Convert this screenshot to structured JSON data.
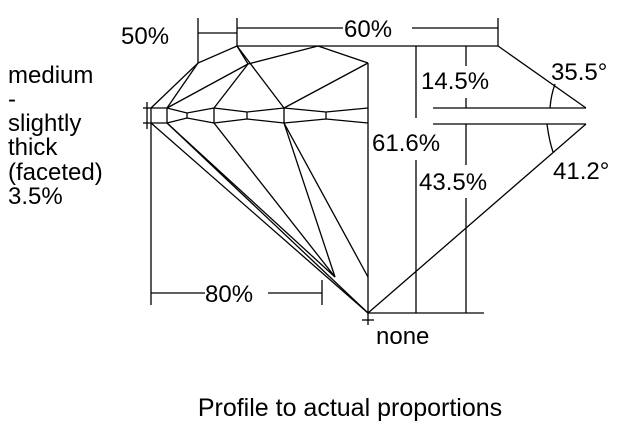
{
  "dimensions": {
    "table_upper": "50%",
    "table": "60%",
    "crown_height": "14.5%",
    "total_depth": "61.6%",
    "pavilion_depth": "43.5%",
    "crown_angle": "35.5°",
    "pavilion_angle": "41.2°",
    "lower_half": "80%",
    "culet": "none"
  },
  "girdle": {
    "lines": [
      "medium",
      "-",
      "slightly",
      "thick",
      "(faceted)",
      "3.5%"
    ]
  },
  "caption": "Profile to actual proportions",
  "colors": {
    "line": "#000000",
    "background": "#ffffff"
  }
}
